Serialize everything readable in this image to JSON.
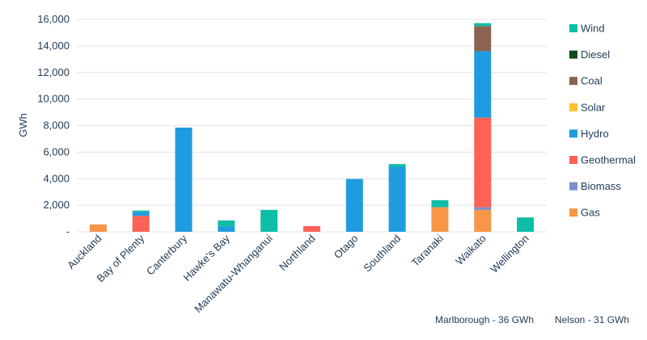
{
  "chart_data": {
    "type": "bar",
    "stacked": true,
    "ylabel": "GWh",
    "ylim": [
      0,
      16000
    ],
    "yticks": [
      {
        "value": 0,
        "label": "-"
      },
      {
        "value": 2000,
        "label": "2,000"
      },
      {
        "value": 4000,
        "label": "4,000"
      },
      {
        "value": 6000,
        "label": "6,000"
      },
      {
        "value": 8000,
        "label": "8,000"
      },
      {
        "value": 10000,
        "label": "10,000"
      },
      {
        "value": 12000,
        "label": "12,000"
      },
      {
        "value": 14000,
        "label": "14,000"
      },
      {
        "value": 16000,
        "label": "16,000"
      }
    ],
    "grid": true,
    "legend_position": "right",
    "categories": [
      "Auckland",
      "Bay of Plenty",
      "Canterbury",
      "Hawke's Bay",
      "Manawatu-Whanganui",
      "Northland",
      "Otago",
      "Southland",
      "Taranaki",
      "Waikato",
      "Wellington"
    ],
    "series": [
      {
        "name": "Gas",
        "color": "#f79646",
        "values": [
          550,
          0,
          0,
          0,
          0,
          0,
          0,
          0,
          1850,
          1650,
          0
        ]
      },
      {
        "name": "Biomass",
        "color": "#7b8ec8",
        "values": [
          0,
          0,
          0,
          0,
          0,
          0,
          0,
          0,
          0,
          200,
          0
        ]
      },
      {
        "name": "Geothermal",
        "color": "#fe6156",
        "values": [
          0,
          1200,
          0,
          0,
          0,
          430,
          0,
          0,
          0,
          6750,
          0
        ]
      },
      {
        "name": "Hydro",
        "color": "#1f9ce0",
        "values": [
          0,
          300,
          7850,
          400,
          0,
          0,
          3980,
          4900,
          0,
          5000,
          0
        ]
      },
      {
        "name": "Solar",
        "color": "#f9c22e",
        "values": [
          0,
          0,
          0,
          0,
          0,
          0,
          0,
          0,
          0,
          0,
          0
        ]
      },
      {
        "name": "Coal",
        "color": "#8b6352",
        "values": [
          0,
          0,
          0,
          0,
          0,
          0,
          0,
          0,
          0,
          1900,
          0
        ]
      },
      {
        "name": "Diesel",
        "color": "#0e4a1f",
        "values": [
          0,
          0,
          0,
          0,
          0,
          0,
          0,
          0,
          0,
          0,
          0
        ]
      },
      {
        "name": "Wind",
        "color": "#0fbea6",
        "values": [
          0,
          100,
          0,
          450,
          1650,
          0,
          0,
          200,
          530,
          220,
          1080
        ]
      }
    ],
    "legend_order": [
      "Wind",
      "Diesel",
      "Coal",
      "Solar",
      "Hydro",
      "Geothermal",
      "Biomass",
      "Gas"
    ],
    "annotations": [
      "Marlborough - 36 GWh",
      "Nelson - 31 GWh"
    ]
  }
}
